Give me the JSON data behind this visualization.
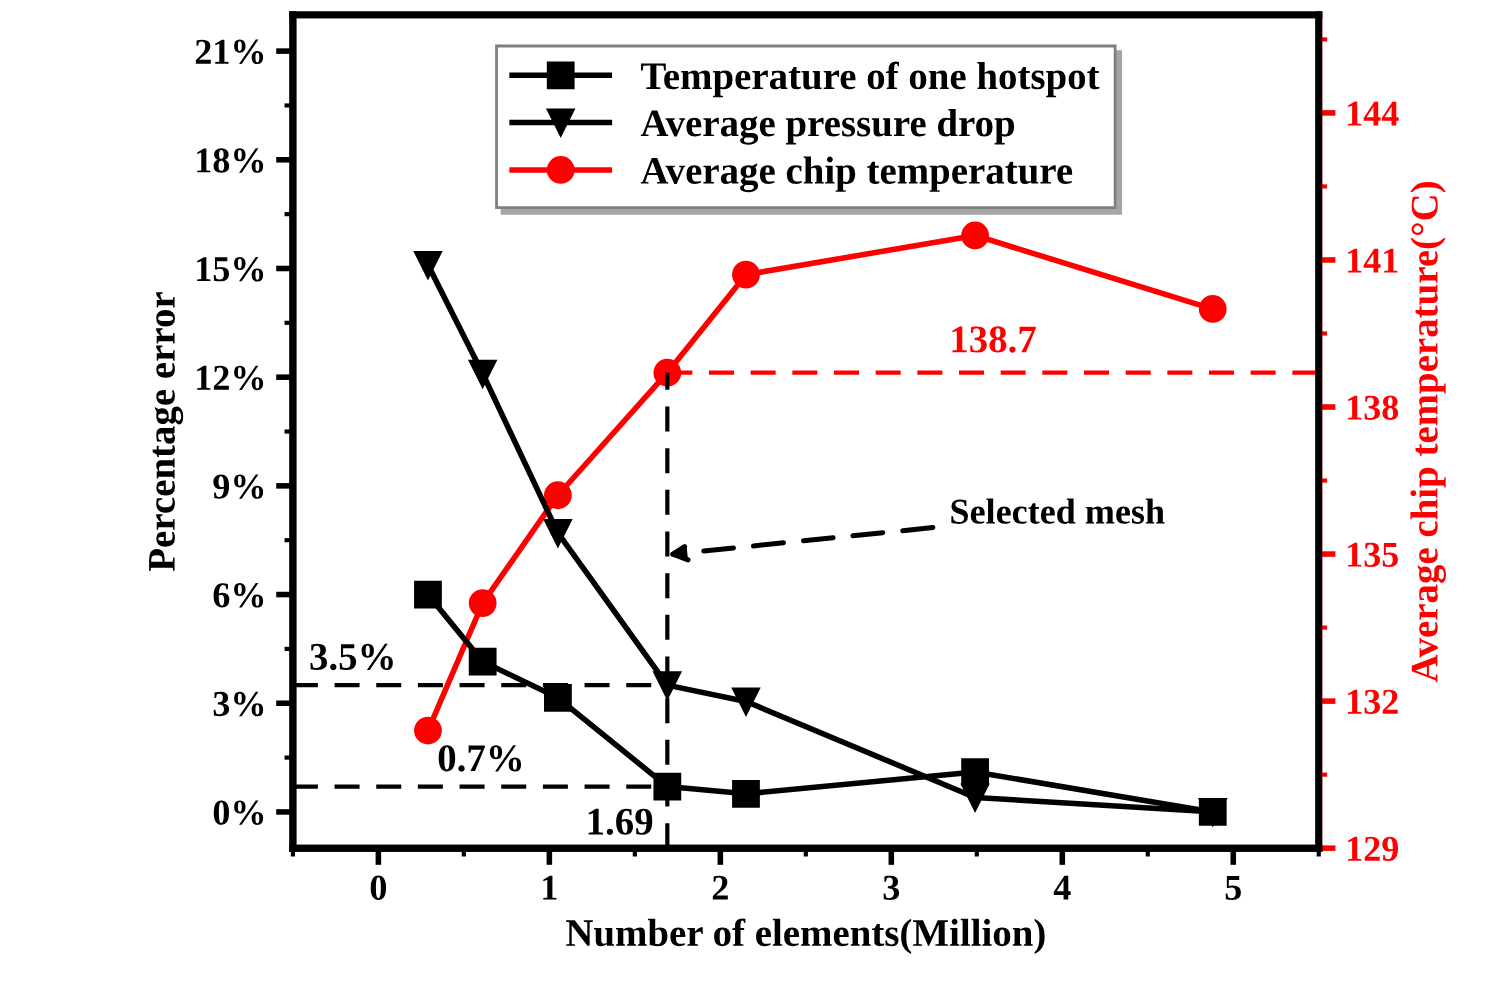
{
  "chart_data": {
    "type": "line",
    "xlabel": "Number of elements(Million)",
    "ylabel": "Percentage error",
    "y2label": "Average chip temperature(°C)",
    "xlim": [
      -0.5,
      5.5
    ],
    "xticks": [
      0,
      1,
      2,
      3,
      4,
      5
    ],
    "ylim": [
      -1,
      22
    ],
    "yticks": [
      {
        "value": 0,
        "label": "0%"
      },
      {
        "value": 3,
        "label": "3%"
      },
      {
        "value": 6,
        "label": "6%"
      },
      {
        "value": 9,
        "label": "9%"
      },
      {
        "value": 12,
        "label": "12%"
      },
      {
        "value": 15,
        "label": "15%"
      },
      {
        "value": 18,
        "label": "18%"
      },
      {
        "value": 21,
        "label": "21%"
      }
    ],
    "y2lim": [
      129,
      146
    ],
    "y2ticks": [
      129,
      132,
      135,
      138,
      141,
      144
    ],
    "x": [
      0.29,
      0.61,
      1.05,
      1.69,
      2.15,
      3.49,
      4.88
    ],
    "series": [
      {
        "name": "Temperature of one hotspot",
        "color": "#000000",
        "marker": "square",
        "values": [
          6.0,
          4.15,
          3.15,
          0.7,
          0.5,
          1.1,
          0.0
        ]
      },
      {
        "name": "Average pressure drop",
        "color": "#000000",
        "marker": "triangle",
        "values": [
          15.1,
          12.1,
          7.7,
          3.5,
          3.05,
          0.4,
          0.0
        ]
      },
      {
        "name": "Average chip temperature",
        "color": "#ff0000",
        "marker": "circle",
        "axis": "y2",
        "values": [
          131.4,
          134.0,
          136.2,
          138.7,
          140.7,
          141.5,
          140.0
        ]
      }
    ],
    "ref_lines": [
      {
        "axis": "x",
        "value": 1.69,
        "label": "1.69",
        "color": "#000000",
        "line_style": "dashed"
      },
      {
        "axis": "y",
        "value": 3.5,
        "label": "3.5%",
        "color": "#000000",
        "line_style": "dashed"
      },
      {
        "axis": "y",
        "value": 0.7,
        "label": "0.7%",
        "color": "#000000",
        "line_style": "dashed"
      },
      {
        "axis": "y2",
        "value": 138.7,
        "label": "138.7",
        "color": "#ff0000",
        "line_style": "dashed"
      }
    ],
    "annotations": [
      {
        "text": "Selected mesh",
        "x": 1.69,
        "y": 7.1
      }
    ],
    "legend": "top",
    "grid": false,
    "line_style": "solid"
  }
}
